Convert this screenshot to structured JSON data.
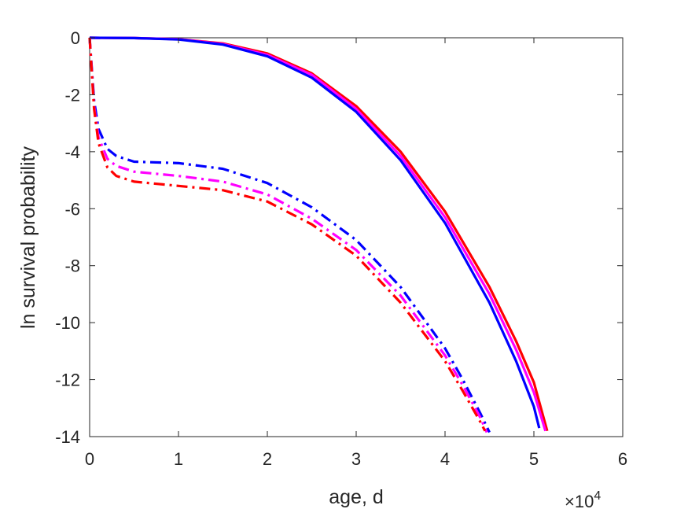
{
  "chart_data": {
    "type": "line",
    "title": "",
    "xlabel": "age, d",
    "ylabel": "ln survival probability",
    "x_multiplier_label": {
      "base": "×10",
      "exponent": "4"
    },
    "xlim": [
      0,
      60000
    ],
    "ylim": [
      -14,
      0
    ],
    "x_ticks": [
      0,
      10000,
      20000,
      30000,
      40000,
      50000,
      60000
    ],
    "x_tick_labels": [
      "0",
      "1",
      "2",
      "3",
      "4",
      "5",
      "6"
    ],
    "y_ticks": [
      0,
      -2,
      -4,
      -6,
      -8,
      -10,
      -12,
      -14
    ],
    "y_tick_labels": [
      "0",
      "-2",
      "-4",
      "-6",
      "-8",
      "-10",
      "-12",
      "-14"
    ],
    "grid": false,
    "legend": "none",
    "series": [
      {
        "color": "#ff0000",
        "style": "solid",
        "x": [
          0,
          5000,
          10000,
          15000,
          20000,
          25000,
          30000,
          35000,
          40000,
          45000,
          48000,
          50000,
          51500
        ],
        "y": [
          0,
          -0.01,
          -0.05,
          -0.2,
          -0.55,
          -1.25,
          -2.4,
          -4.0,
          -6.1,
          -8.75,
          -10.65,
          -12.1,
          -13.8
        ]
      },
      {
        "color": "#ff00ff",
        "style": "solid",
        "x": [
          0,
          5000,
          10000,
          15000,
          20000,
          25000,
          30000,
          35000,
          40000,
          45000,
          48000,
          50000,
          51300
        ],
        "y": [
          0,
          -0.01,
          -0.05,
          -0.22,
          -0.6,
          -1.3,
          -2.5,
          -4.15,
          -6.3,
          -9.0,
          -10.95,
          -12.45,
          -13.8
        ]
      },
      {
        "color": "#0000ff",
        "style": "solid",
        "x": [
          0,
          5000,
          10000,
          15000,
          20000,
          25000,
          30000,
          35000,
          40000,
          45000,
          48000,
          50000,
          50600
        ],
        "y": [
          0,
          -0.01,
          -0.06,
          -0.24,
          -0.65,
          -1.4,
          -2.6,
          -4.3,
          -6.5,
          -9.3,
          -11.35,
          -12.95,
          -13.7
        ]
      },
      {
        "color": "#0000ff",
        "style": "dashdot",
        "x": [
          0,
          500,
          1000,
          2000,
          3000,
          5000,
          10000,
          15000,
          20000,
          25000,
          30000,
          35000,
          40000,
          42000,
          44000,
          45000
        ],
        "y": [
          0,
          -2.2,
          -3.2,
          -3.9,
          -4.15,
          -4.35,
          -4.4,
          -4.6,
          -5.1,
          -5.95,
          -7.1,
          -8.75,
          -10.9,
          -12.0,
          -13.2,
          -13.85
        ]
      },
      {
        "color": "#ff00ff",
        "style": "dashdot",
        "x": [
          0,
          500,
          1000,
          2000,
          3000,
          5000,
          10000,
          15000,
          20000,
          25000,
          30000,
          35000,
          40000,
          42000,
          44000,
          44700
        ],
        "y": [
          0,
          -2.4,
          -3.5,
          -4.25,
          -4.5,
          -4.7,
          -4.85,
          -5.05,
          -5.5,
          -6.35,
          -7.45,
          -9.05,
          -11.15,
          -12.2,
          -13.35,
          -13.85
        ]
      },
      {
        "color": "#ff0000",
        "style": "dashdot",
        "x": [
          0,
          500,
          1000,
          2000,
          3000,
          5000,
          10000,
          15000,
          20000,
          25000,
          30000,
          35000,
          40000,
          42000,
          44000,
          44500
        ],
        "y": [
          0,
          -2.5,
          -3.7,
          -4.55,
          -4.85,
          -5.05,
          -5.2,
          -5.35,
          -5.75,
          -6.55,
          -7.65,
          -9.3,
          -11.35,
          -12.4,
          -13.5,
          -13.8
        ]
      }
    ]
  }
}
